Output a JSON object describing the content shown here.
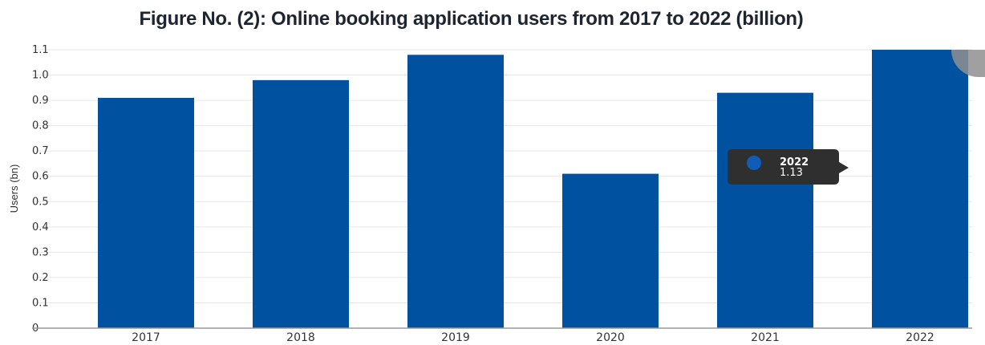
{
  "title": "Figure No. (2): Online booking application users from 2017 to 2022 (billion)",
  "colors": {
    "bar": "#0052a0",
    "grid": "#e3e6ea",
    "baseline": "#999999",
    "tooltip_bg": "#2f2f2f",
    "tooltip_dot": "#0f5db8"
  },
  "chart_data": {
    "type": "bar",
    "title": "Figure No. (2): Online booking application users from 2017 to 2022 (billion)",
    "xlabel": "",
    "ylabel": "Users (bn)",
    "categories": [
      "2017",
      "2018",
      "2019",
      "2020",
      "2021",
      "2022"
    ],
    "values": [
      0.91,
      0.98,
      1.08,
      0.61,
      0.93,
      1.13
    ],
    "ylim": [
      0,
      1.1
    ],
    "yticks": [
      "0",
      "0.1",
      "0.2",
      "0.3",
      "0.4",
      "0.5",
      "0.6",
      "0.7",
      "0.8",
      "0.9",
      "1.0",
      "1.1"
    ],
    "grid": true,
    "legend": "none"
  },
  "tooltip": {
    "year": "2022",
    "value": "1.13"
  }
}
